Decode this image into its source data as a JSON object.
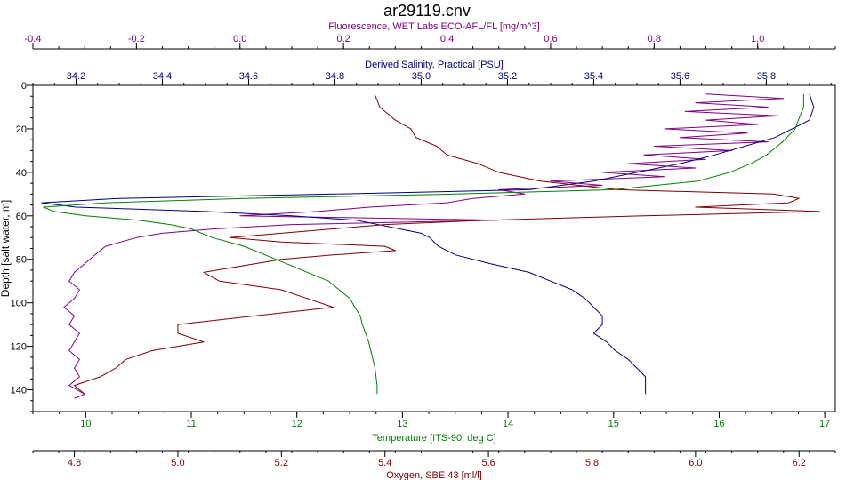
{
  "chart_data": {
    "type": "line",
    "title": "ar29119.cnv",
    "colors": {
      "fluorescence": "#800080",
      "salinity": "#000080",
      "temperature": "#008000",
      "oxygen": "#800000",
      "frame": "#000000"
    },
    "axes": {
      "fluorescence": {
        "label": "Fluorescence, WET Labs ECO-AFL/FL [mg/m^3]",
        "position": "top-outer",
        "range": [
          -0.4,
          1.15
        ],
        "ticks": [
          -0.4,
          -0.2,
          0.0,
          0.2,
          0.4,
          0.6,
          0.8,
          1.0
        ],
        "tick_labels": [
          "-0.4",
          "-0.2",
          "0.0",
          "0.2",
          "0.4",
          "0.6",
          "0.8",
          "1.0"
        ]
      },
      "salinity": {
        "label": "Derived Salinity, Practical [PSU]",
        "position": "top-inner",
        "range": [
          34.1,
          35.96
        ],
        "ticks": [
          34.2,
          34.4,
          34.6,
          34.8,
          35.0,
          35.2,
          35.4,
          35.6,
          35.8
        ],
        "tick_labels": [
          "34.2",
          "34.4",
          "34.6",
          "34.8",
          "35.0",
          "35.2",
          "35.4",
          "35.6",
          "35.8"
        ]
      },
      "temperature": {
        "label": "Temperature [ITS-90, deg C]",
        "position": "bottom-inner",
        "range": [
          9.5,
          17.1
        ],
        "ticks": [
          10,
          11,
          12,
          13,
          14,
          15,
          16,
          17
        ],
        "tick_labels": [
          "10",
          "11",
          "12",
          "13",
          "14",
          "15",
          "16",
          "17"
        ]
      },
      "oxygen": {
        "label": "Oxygen, SBE 43 [ml/l]",
        "position": "bottom-outer",
        "range": [
          4.72,
          6.27
        ],
        "ticks": [
          4.8,
          5.0,
          5.2,
          5.4,
          5.6,
          5.8,
          6.0,
          6.2
        ],
        "tick_labels": [
          "4.8",
          "5.0",
          "5.2",
          "5.4",
          "5.6",
          "5.8",
          "6.0",
          "6.2"
        ]
      },
      "depth": {
        "label": "Depth [salt water, m]",
        "position": "left",
        "range": [
          0,
          150
        ],
        "inverted": true,
        "ticks": [
          0,
          20,
          40,
          60,
          80,
          100,
          120,
          140
        ],
        "tick_labels": [
          "0",
          "20",
          "40",
          "60",
          "80",
          "100",
          "120",
          "140"
        ]
      }
    },
    "series": [
      {
        "name": "Fluorescence, WET Labs ECO-AFL/FL [mg/m^3]",
        "key": "fluorescence",
        "depth": [
          4,
          6,
          8,
          10,
          12,
          14,
          16,
          18,
          20,
          22,
          24,
          26,
          28,
          30,
          32,
          34,
          36,
          38,
          40,
          42,
          44,
          46,
          48,
          50,
          52,
          54,
          56,
          58,
          60,
          62,
          64,
          66,
          68,
          70,
          74,
          78,
          82,
          86,
          90,
          94,
          98,
          102,
          106,
          110,
          114,
          118,
          122,
          126,
          130,
          134,
          138,
          142,
          144
        ],
        "values": [
          0.9,
          1.05,
          0.88,
          1.02,
          0.86,
          1.04,
          0.9,
          1.0,
          0.82,
          0.98,
          0.85,
          1.02,
          0.8,
          0.95,
          0.78,
          0.9,
          0.75,
          0.88,
          0.7,
          0.82,
          0.6,
          0.7,
          0.5,
          0.55,
          0.45,
          0.4,
          0.25,
          0.15,
          0.0,
          0.5,
          0.1,
          -0.05,
          -0.15,
          -0.2,
          -0.26,
          -0.28,
          -0.3,
          -0.32,
          -0.33,
          -0.31,
          -0.32,
          -0.34,
          -0.32,
          -0.33,
          -0.31,
          -0.32,
          -0.33,
          -0.31,
          -0.32,
          -0.31,
          -0.33,
          -0.3,
          -0.32
        ]
      },
      {
        "name": "Derived Salinity, Practical [PSU]",
        "key": "salinity",
        "depth": [
          4,
          10,
          16,
          20,
          24,
          28,
          32,
          36,
          40,
          44,
          48,
          50,
          52,
          54,
          56,
          58,
          60,
          62,
          64,
          66,
          68,
          70,
          74,
          78,
          82,
          86,
          90,
          94,
          98,
          102,
          106,
          110,
          114,
          118,
          122,
          126,
          130,
          134,
          138,
          142
        ],
        "values": [
          35.9,
          35.91,
          35.9,
          35.86,
          35.82,
          35.75,
          35.68,
          35.6,
          35.5,
          35.4,
          35.25,
          34.8,
          34.3,
          34.12,
          34.2,
          34.5,
          34.7,
          34.85,
          34.9,
          34.95,
          35.0,
          35.02,
          35.04,
          35.08,
          35.16,
          35.25,
          35.3,
          35.35,
          35.38,
          35.4,
          35.42,
          35.42,
          35.4,
          35.43,
          35.45,
          35.48,
          35.5,
          35.52,
          35.52,
          35.52
        ]
      },
      {
        "name": "Temperature [ITS-90, deg C]",
        "key": "temperature",
        "depth": [
          4,
          10,
          16,
          20,
          26,
          32,
          36,
          40,
          44,
          48,
          50,
          52,
          54,
          56,
          58,
          60,
          62,
          64,
          66,
          68,
          70,
          74,
          78,
          82,
          86,
          90,
          94,
          98,
          102,
          106,
          110,
          114,
          118,
          122,
          126,
          130,
          134,
          138,
          142
        ],
        "values": [
          16.8,
          16.8,
          16.75,
          16.72,
          16.6,
          16.45,
          16.3,
          16.1,
          15.8,
          15.0,
          13.5,
          11.5,
          10.2,
          9.6,
          9.7,
          10.0,
          10.5,
          10.8,
          11.0,
          11.1,
          11.2,
          11.5,
          11.7,
          11.9,
          12.1,
          12.3,
          12.4,
          12.5,
          12.55,
          12.6,
          12.62,
          12.65,
          12.68,
          12.7,
          12.72,
          12.74,
          12.75,
          12.76,
          12.76
        ]
      },
      {
        "name": "Oxygen, SBE 43 [ml/l]",
        "key": "oxygen",
        "depth": [
          4,
          10,
          16,
          20,
          24,
          28,
          32,
          36,
          40,
          44,
          48,
          50,
          52,
          54,
          56,
          58,
          60,
          62,
          64,
          66,
          68,
          70,
          72,
          74,
          76,
          78,
          80,
          82,
          86,
          90,
          94,
          98,
          102,
          106,
          110,
          114,
          118,
          122,
          126,
          130,
          134,
          138,
          142
        ],
        "values": [
          5.38,
          5.39,
          5.42,
          5.45,
          5.46,
          5.5,
          5.52,
          5.58,
          5.62,
          5.7,
          5.85,
          6.15,
          6.2,
          6.18,
          6.0,
          6.24,
          5.9,
          5.6,
          5.4,
          5.3,
          5.2,
          5.1,
          5.2,
          5.4,
          5.42,
          5.3,
          5.2,
          5.15,
          5.05,
          5.08,
          5.2,
          5.25,
          5.3,
          5.15,
          5.0,
          5.0,
          5.05,
          4.95,
          4.9,
          4.88,
          4.85,
          4.8,
          4.82
        ]
      }
    ]
  }
}
